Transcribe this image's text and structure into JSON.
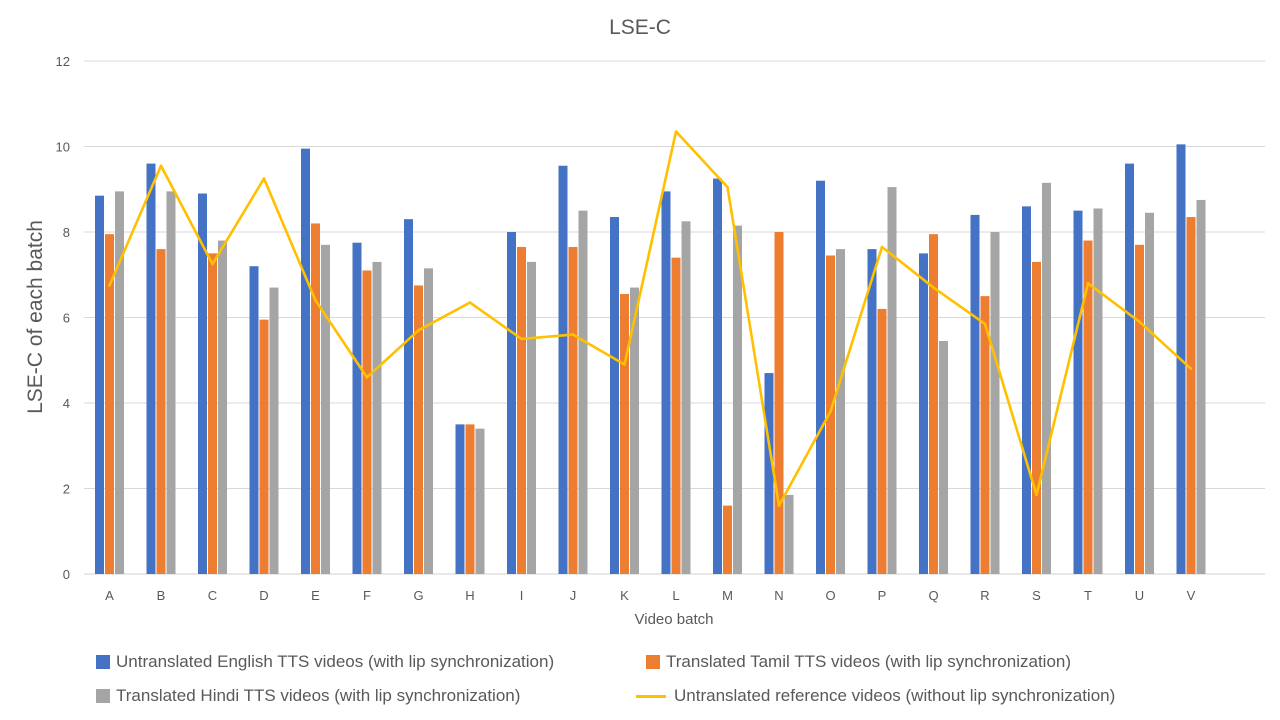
{
  "chart_data": {
    "type": "bar",
    "title": "LSE-C",
    "xlabel": "Video batch",
    "ylabel": "LSE-C of each batch",
    "ylim": [
      0,
      12
    ],
    "yticks": [
      0,
      2,
      4,
      6,
      8,
      10,
      12
    ],
    "grid": true,
    "legend_position": "bottom",
    "categories": [
      "A",
      "B",
      "C",
      "D",
      "E",
      "F",
      "G",
      "H",
      "I",
      "J",
      "K",
      "L",
      "M",
      "N",
      "O",
      "P",
      "Q",
      "R",
      "S",
      "T",
      "U",
      "V"
    ],
    "series": [
      {
        "name": "Untranslated English TTS videos (with lip synchronization)",
        "type": "bar",
        "color": "#4472C4",
        "values": [
          8.85,
          9.6,
          8.9,
          7.2,
          9.95,
          7.75,
          8.3,
          3.5,
          8.0,
          9.55,
          8.35,
          8.95,
          9.25,
          4.7,
          9.2,
          7.6,
          7.5,
          8.4,
          8.6,
          8.5,
          9.6,
          10.05
        ]
      },
      {
        "name": "Translated Tamil TTS videos (with lip synchronization)",
        "type": "bar",
        "color": "#ED7D31",
        "values": [
          7.95,
          7.6,
          7.5,
          5.95,
          8.2,
          7.1,
          6.75,
          3.5,
          7.65,
          7.65,
          6.55,
          7.4,
          1.6,
          8.0,
          7.45,
          6.2,
          7.95,
          6.5,
          7.3,
          7.8,
          7.7,
          8.35
        ]
      },
      {
        "name": "Translated Hindi TTS videos (with lip synchronization)",
        "type": "bar",
        "color": "#A5A5A5",
        "values": [
          8.95,
          8.95,
          7.8,
          6.7,
          7.7,
          7.3,
          7.15,
          3.4,
          7.3,
          8.5,
          6.7,
          8.25,
          8.15,
          1.85,
          7.6,
          9.05,
          5.45,
          8.0,
          9.15,
          8.55,
          8.45,
          8.75
        ]
      },
      {
        "name": "Untranslated reference videos (without lip synchronization)",
        "type": "line",
        "color": "#FFC000",
        "values": [
          6.75,
          9.55,
          7.25,
          9.25,
          6.4,
          4.6,
          5.7,
          6.35,
          5.5,
          5.6,
          4.9,
          10.35,
          9.05,
          1.6,
          3.8,
          7.65,
          6.7,
          5.85,
          1.85,
          6.8,
          5.9,
          4.8
        ]
      }
    ]
  }
}
